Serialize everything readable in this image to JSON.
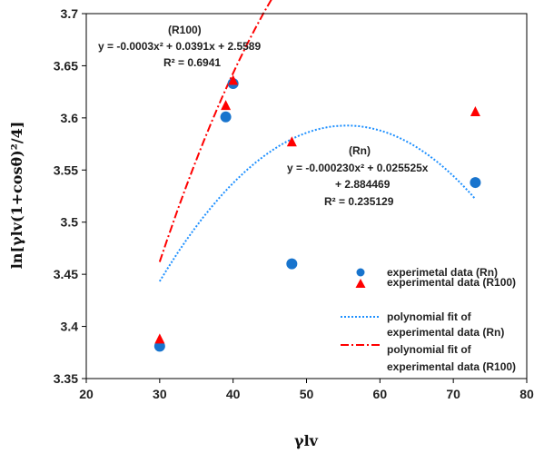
{
  "chart_data": {
    "type": "scatter",
    "xlabel": "γlv",
    "ylabel": "ln[γlv(1+cosθ)²/4]",
    "xlim": [
      20,
      80
    ],
    "ylim": [
      3.35,
      3.7
    ],
    "xticks": [
      "20",
      "30",
      "40",
      "50",
      "60",
      "70",
      "80"
    ],
    "yticks": [
      "3.35",
      "3.4",
      "3.45",
      "3.5",
      "3.55",
      "3.6",
      "3.65",
      "3.7"
    ],
    "grid": false,
    "legend_position": "right",
    "series": [
      {
        "name": "experimetal data (Rn)",
        "marker": "circle",
        "color": "#1874CD",
        "points": [
          [
            30,
            3.381
          ],
          [
            39,
            3.601
          ],
          [
            40,
            3.633
          ],
          [
            48,
            3.46
          ],
          [
            73,
            3.538
          ]
        ]
      },
      {
        "name": "experimental data (R100)",
        "marker": "triangle",
        "color": "#FF0000",
        "points": [
          [
            30,
            3.388
          ],
          [
            39,
            3.612
          ],
          [
            40,
            3.636
          ],
          [
            48,
            3.577
          ],
          [
            73,
            3.606
          ]
        ]
      },
      {
        "name": "polynomial fit of experimental data (Rn)",
        "legend_lines": [
          "polynomial fit of",
          "experimental data (Rn)"
        ],
        "line": "dotted",
        "color": "#1E90FF",
        "coefficients": [
          -0.00023,
          0.025525,
          2.884469
        ],
        "x_range": [
          30,
          73
        ]
      },
      {
        "name": "polynomial fit of experimental data (R100)",
        "legend_lines": [
          "polynomial fit of",
          "experimental data (R100)"
        ],
        "line": "dash-dot",
        "color": "#FF0000",
        "coefficients": [
          -0.0003,
          0.0391,
          2.5589
        ],
        "x_range": [
          30,
          73
        ]
      }
    ],
    "annotations": {
      "r100": [
        "(R100)",
        "y = -0.0003x² + 0.0391x + 2.5589",
        "R² = 0.6941"
      ],
      "rn": [
        "(Rn)",
        "y = -0.000230x² + 0.025525x",
        "+ 2.884469",
        "R² = 0.235129"
      ]
    }
  }
}
